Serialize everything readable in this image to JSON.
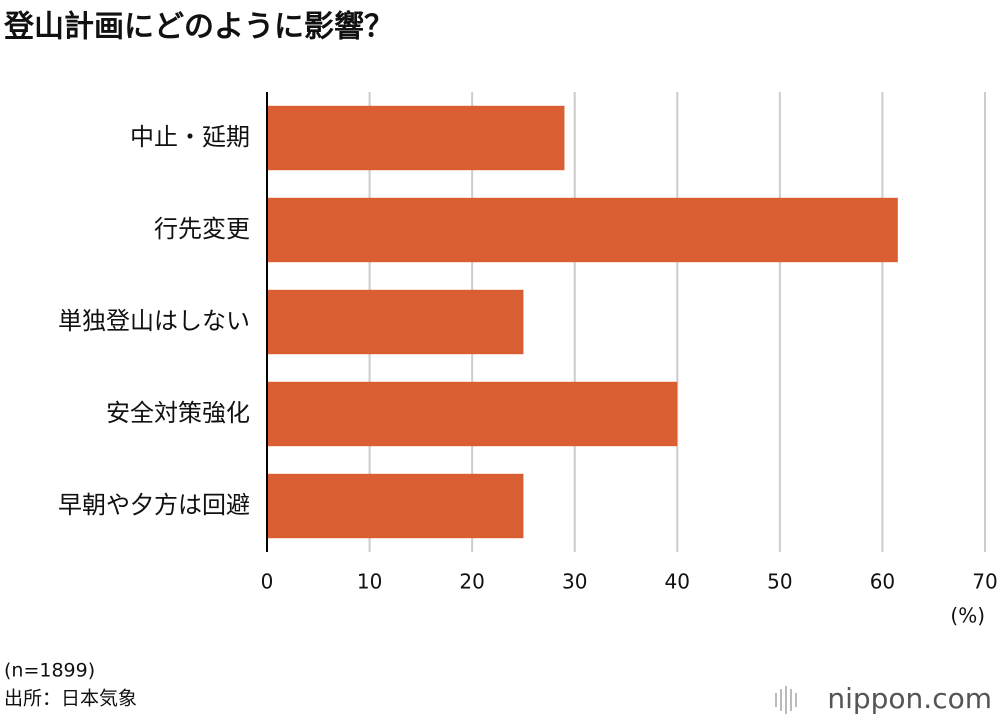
{
  "chart_data": {
    "type": "bar",
    "orientation": "horizontal",
    "title": "登山計画にどのように影響？",
    "categories": [
      "中止・延期",
      "行先変更",
      "単独登山はしない",
      "安全対策強化",
      "早朝や夕方は回避"
    ],
    "values": [
      29,
      61.5,
      25,
      40,
      25
    ],
    "color": "#d95f33",
    "xlim": [
      0,
      70
    ],
    "xticks": [
      0,
      10,
      20,
      30,
      40,
      50,
      60,
      70
    ],
    "x_label": "(%)",
    "grid": true,
    "notes": [
      "(n=1899)",
      "出所：日本気象"
    ],
    "logo": "nippon.com"
  }
}
